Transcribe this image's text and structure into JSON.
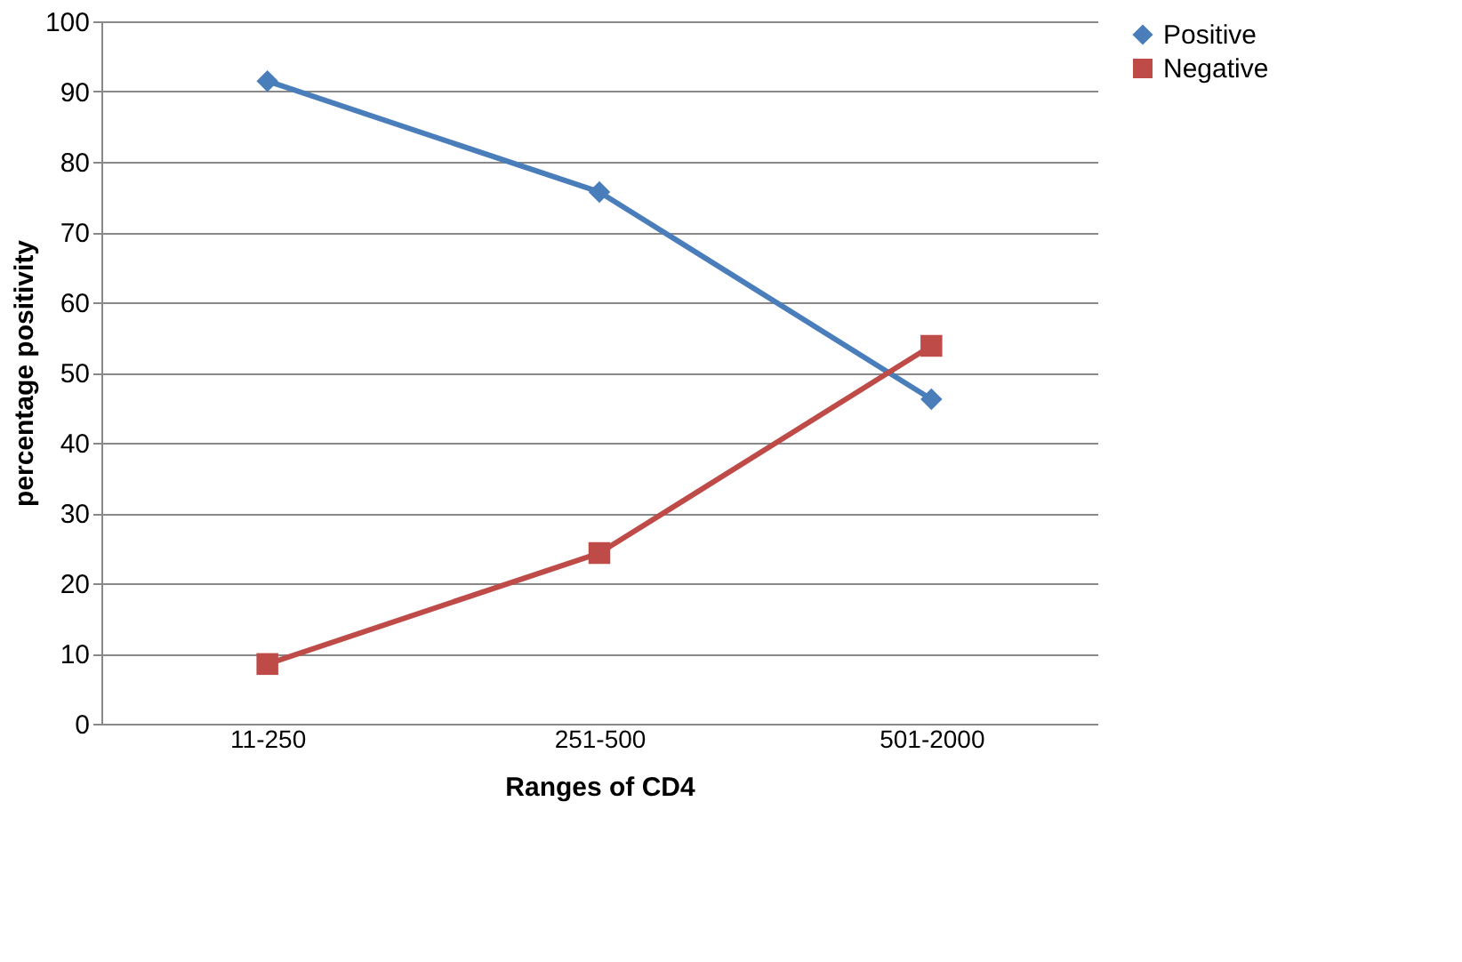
{
  "chart_data": {
    "type": "line",
    "xlabel": "Ranges of CD4",
    "ylabel": "percentage positivity",
    "categories": [
      "11-250",
      "251-500",
      "501-2000"
    ],
    "series": [
      {
        "name": "Positive",
        "color": "#4a7ebb",
        "marker": "diamond",
        "values": [
          91.5,
          75.7,
          46.2
        ]
      },
      {
        "name": "Negative",
        "color": "#be4b48",
        "marker": "square",
        "values": [
          8.5,
          24.3,
          53.8
        ]
      }
    ],
    "ylim": [
      0,
      100
    ],
    "yticks": [
      0,
      10,
      20,
      30,
      40,
      50,
      60,
      70,
      80,
      90,
      100
    ],
    "grid": "y",
    "legend": "right",
    "line_style": "solid"
  }
}
